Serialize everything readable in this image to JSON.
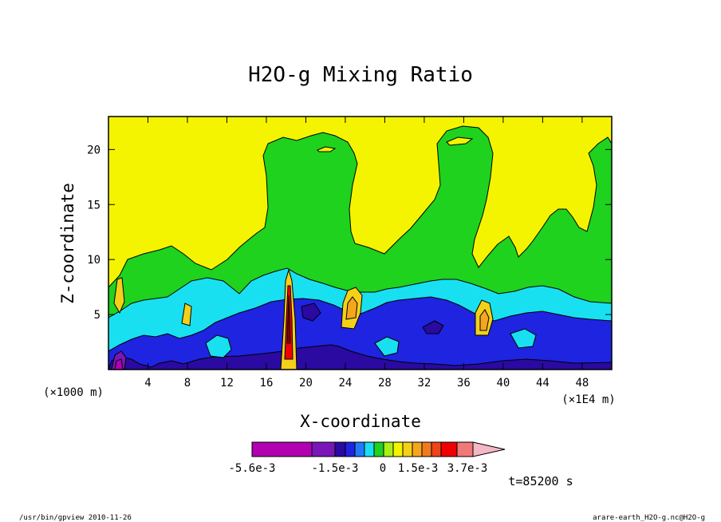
{
  "chart_data": {
    "type": "heatmap",
    "title": "H2O-g Mixing Ratio",
    "xlabel": "X-coordinate",
    "ylabel": "Z-coordinate",
    "x_units": "(×1000 m)",
    "x_scale_note": "(×1E4 m)",
    "xlim": [
      0,
      51
    ],
    "ylim": [
      0,
      23
    ],
    "x_ticks": [
      4,
      8,
      12,
      16,
      20,
      24,
      28,
      32,
      36,
      40,
      44,
      48
    ],
    "y_ticks": [
      5,
      10,
      15,
      20
    ],
    "colorbar": {
      "colors": [
        "#b000b0",
        "#7a16b8",
        "#2a0aa0",
        "#1e24e0",
        "#1e7cf8",
        "#18e0f0",
        "#1ed21e",
        "#a8f018",
        "#f4f400",
        "#f4d018",
        "#f4a61e",
        "#f07a1e",
        "#f04418",
        "#f00000",
        "#f07878",
        "#f4b8c4"
      ],
      "tick_labels": [
        "-5.6e-3",
        "-1.5e-3",
        "0",
        "1.5e-3",
        "3.7e-3"
      ]
    },
    "regions": [
      {
        "level": "1.5e-3",
        "color": "#f4f400",
        "zone": "upper atmosphere background"
      },
      {
        "level": "0",
        "color": "#1ed21e",
        "zone": "mid-level band with plumes near x=22 and x=37"
      },
      {
        "level": "-5e-4",
        "color": "#18e0f0",
        "zone": "lower band"
      },
      {
        "level": "-1e-3",
        "color": "#1e24e0",
        "zone": "near-surface layer"
      },
      {
        "level": "3.7e-3",
        "color": "#f00000",
        "zone": "narrow column near x=18"
      }
    ]
  },
  "time_label": "t=85200 s",
  "footer": {
    "left": "/usr/bin/gpview  2010-11-26",
    "right": "arare-earth_H2O-g.nc@H2O-g"
  },
  "colors": {
    "yellow": "#f4f400",
    "green": "#1ed21e",
    "cyan": "#18e0f0",
    "blue": "#1e24e0",
    "navy": "#2a0aa0"
  }
}
